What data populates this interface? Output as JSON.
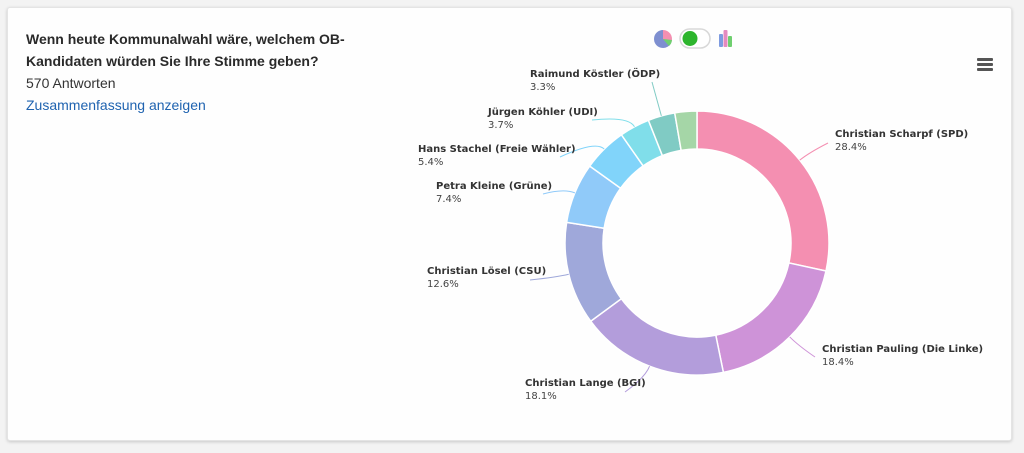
{
  "survey": {
    "question": "Wenn heute Kommunalwahl wäre, welchem OB-Kandidaten würden Sie Ihre Stimme geben?",
    "responses": "570 Antworten",
    "summary_link": "Zusammenfassung anzeigen"
  },
  "toolbar": {
    "pie_icon": "pie-chart-icon",
    "toggle_icon": "toggle-switch-icon",
    "bar_icon": "bar-chart-icon",
    "menu_icon": "hamburger-menu-icon",
    "toggle_color": "#2db52d"
  },
  "chart_data": {
    "type": "pie",
    "title": "",
    "series": [
      {
        "values": [
          {
            "label": "Christian Scharpf (SPD)",
            "value": 28.4,
            "display": "28.4%",
            "color": "#f48fb1"
          },
          {
            "label": "Christian Pauling (Die Linke)",
            "value": 18.4,
            "display": "18.4%",
            "color": "#ce93d8"
          },
          {
            "label": "Christian Lange (BGI)",
            "value": 18.1,
            "display": "18.1%",
            "color": "#b39ddb"
          },
          {
            "label": "Christian Lösel (CSU)",
            "value": 12.6,
            "display": "12.6%",
            "color": "#9fa8da"
          },
          {
            "label": "Petra Kleine (Grüne)",
            "value": 7.4,
            "display": "7.4%",
            "color": "#90caf9"
          },
          {
            "label": "Hans Stachel (Freie Wähler)",
            "value": 5.4,
            "display": "5.4%",
            "color": "#81d4fa"
          },
          {
            "label": "Jürgen Köhler (UDI)",
            "value": 3.7,
            "display": "3.7%",
            "color": "#80deea"
          },
          {
            "label": "Raimund Köstler (ÖDP)",
            "value": 3.3,
            "display": "3.3%",
            "color": "#80cbc4"
          },
          {
            "label": "",
            "value": 2.7,
            "display": "",
            "color": "#a5d6a7"
          }
        ]
      }
    ],
    "donut": true
  }
}
